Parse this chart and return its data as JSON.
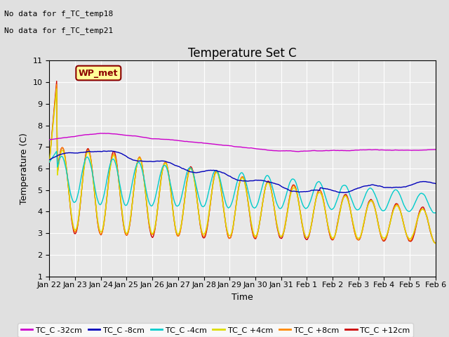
{
  "title": "Temperature Set C",
  "xlabel": "Time",
  "ylabel": "Temperature (C)",
  "ylim": [
    1.0,
    11.0
  ],
  "yticks": [
    1.0,
    2.0,
    3.0,
    4.0,
    5.0,
    6.0,
    7.0,
    8.0,
    9.0,
    10.0,
    11.0
  ],
  "annotations": [
    "No data for f_TC_temp18",
    "No data for f_TC_temp21"
  ],
  "wp_met_label": "WP_met",
  "series_colors": {
    "TC_C -32cm": "#cc00cc",
    "TC_C -8cm": "#0000bb",
    "TC_C -4cm": "#00cccc",
    "TC_C +4cm": "#dddd00",
    "TC_C +8cm": "#ff8800",
    "TC_C +12cm": "#cc0000"
  },
  "xtick_labels": [
    "Jan 22",
    "Jan 23",
    "Jan 24",
    "Jan 25",
    "Jan 26",
    "Jan 27",
    "Jan 28",
    "Jan 29",
    "Jan 30",
    "Jan 31",
    "Feb 1",
    "Feb 2",
    "Feb 3",
    "Feb 4",
    "Feb 5",
    "Feb 6"
  ],
  "n_points": 480,
  "background_color": "#e0e0e0",
  "plot_bg": "#e8e8e8",
  "grid_color": "white",
  "title_fontsize": 12,
  "axis_fontsize": 9,
  "tick_fontsize": 8,
  "linewidth": 1.0
}
